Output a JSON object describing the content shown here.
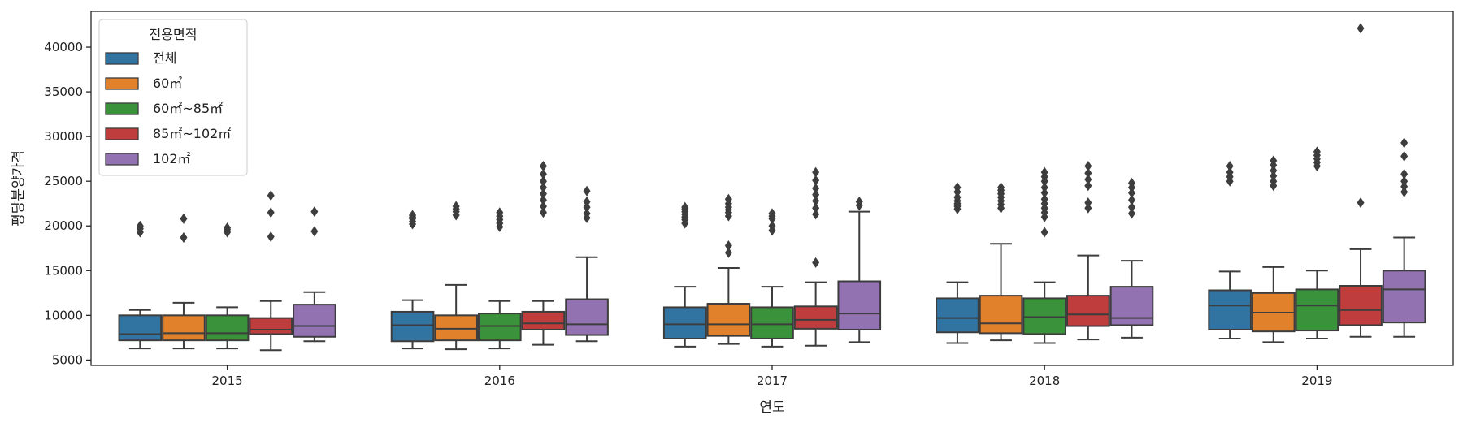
{
  "chart_data": {
    "type": "box",
    "xlabel": "연도",
    "ylabel": "평당분양가격",
    "categories": [
      "2015",
      "2016",
      "2017",
      "2018",
      "2019"
    ],
    "ylim": [
      4400,
      44000
    ],
    "yticks": [
      5000,
      10000,
      15000,
      20000,
      25000,
      30000,
      35000,
      40000
    ],
    "grid": false,
    "legend": {
      "title": "전용면적",
      "placement": "top-left"
    },
    "series": [
      {
        "name": "전체",
        "color": "#3274a1",
        "boxes": [
          {
            "whislo": 6300,
            "q1": 7200,
            "med": 7900,
            "q3": 10000,
            "whishi": 10600,
            "fliers": [
              19300,
              19700,
              20000
            ]
          },
          {
            "whislo": 6300,
            "q1": 7100,
            "med": 8900,
            "q3": 10400,
            "whishi": 11700,
            "fliers": [
              20200,
              20500,
              20800,
              21000,
              21200
            ]
          },
          {
            "whislo": 6500,
            "q1": 7400,
            "med": 9000,
            "q3": 10900,
            "whishi": 13200,
            "fliers": [
              20300,
              20700,
              21000,
              21300,
              21600,
              21900,
              22100
            ]
          },
          {
            "whislo": 6900,
            "q1": 8100,
            "med": 9700,
            "q3": 11900,
            "whishi": 13700,
            "fliers": [
              21900,
              22200,
              22500,
              22800,
              23200,
              23800,
              24300
            ]
          },
          {
            "whislo": 7400,
            "q1": 8400,
            "med": 11100,
            "q3": 12800,
            "whishi": 14900,
            "fliers": [
              25000,
              25500,
              26000,
              26700
            ]
          }
        ]
      },
      {
        "name": "60㎡",
        "color": "#e1812c",
        "boxes": [
          {
            "whislo": 6300,
            "q1": 7200,
            "med": 8000,
            "q3": 10000,
            "whishi": 11400,
            "fliers": [
              18700,
              20800
            ]
          },
          {
            "whislo": 6200,
            "q1": 7200,
            "med": 8500,
            "q3": 10000,
            "whishi": 13400,
            "fliers": [
              21200,
              21600,
              21900,
              22200
            ]
          },
          {
            "whislo": 6800,
            "q1": 7700,
            "med": 9000,
            "q3": 11300,
            "whishi": 15300,
            "fliers": [
              17000,
              17800,
              21100,
              21500,
              21800,
              22100,
              22500,
              23000
            ]
          },
          {
            "whislo": 7200,
            "q1": 8000,
            "med": 9100,
            "q3": 12200,
            "whishi": 18000,
            "fliers": [
              22000,
              22400,
              22800,
              23200,
              23600,
              24000,
              24300
            ]
          },
          {
            "whislo": 7000,
            "q1": 8200,
            "med": 10300,
            "q3": 12500,
            "whishi": 15400,
            "fliers": [
              24500,
              25000,
              25600,
              26200,
              26800,
              27300
            ]
          }
        ]
      },
      {
        "name": "60㎡~85㎡",
        "color": "#3a923a",
        "boxes": [
          {
            "whislo": 6300,
            "q1": 7200,
            "med": 8000,
            "q3": 10000,
            "whishi": 10900,
            "fliers": [
              19300,
              19600,
              19800
            ]
          },
          {
            "whislo": 6300,
            "q1": 7200,
            "med": 8800,
            "q3": 10200,
            "whishi": 11600,
            "fliers": [
              19900,
              20300,
              20700,
              21100,
              21500
            ]
          },
          {
            "whislo": 6500,
            "q1": 7400,
            "med": 9000,
            "q3": 10900,
            "whishi": 13200,
            "fliers": [
              19500,
              20000,
              20800,
              21100,
              21400
            ]
          },
          {
            "whislo": 6900,
            "q1": 7900,
            "med": 9800,
            "q3": 11900,
            "whishi": 13700,
            "fliers": [
              19300,
              21000,
              21500,
              22000,
              22500,
              23000,
              23700,
              24300,
              25000,
              25500,
              26000
            ]
          },
          {
            "whislo": 7400,
            "q1": 8300,
            "med": 11100,
            "q3": 12900,
            "whishi": 15000,
            "fliers": [
              26700,
              27100,
              27500,
              27900,
              28300
            ]
          }
        ]
      },
      {
        "name": "85㎡~102㎡",
        "color": "#c03d3e",
        "boxes": [
          {
            "whislo": 6100,
            "q1": 7900,
            "med": 8400,
            "q3": 9700,
            "whishi": 11600,
            "fliers": [
              18800,
              21500,
              23400
            ]
          },
          {
            "whislo": 6700,
            "q1": 8400,
            "med": 9100,
            "q3": 10400,
            "whishi": 11600,
            "fliers": [
              21500,
              22200,
              22900,
              23600,
              24300,
              25000,
              25800,
              26700
            ]
          },
          {
            "whislo": 6600,
            "q1": 8500,
            "med": 9500,
            "q3": 11000,
            "whishi": 13700,
            "fliers": [
              15900,
              21300,
              22000,
              22800,
              23500,
              24200,
              25100,
              26000
            ]
          },
          {
            "whislo": 7300,
            "q1": 8800,
            "med": 10100,
            "q3": 12200,
            "whishi": 16700,
            "fliers": [
              22000,
              22600,
              24500,
              25200,
              25900,
              26700
            ]
          },
          {
            "whislo": 7600,
            "q1": 8900,
            "med": 10600,
            "q3": 13300,
            "whishi": 17400,
            "fliers": [
              22600,
              42100
            ]
          }
        ]
      },
      {
        "name": "102㎡",
        "color": "#9372b2",
        "boxes": [
          {
            "whislo": 7100,
            "q1": 7600,
            "med": 8800,
            "q3": 11200,
            "whishi": 12600,
            "fliers": [
              19400,
              21600
            ]
          },
          {
            "whislo": 7100,
            "q1": 7800,
            "med": 9000,
            "q3": 11800,
            "whishi": 16500,
            "fliers": [
              20900,
              21400,
              22100,
              22700,
              23900
            ]
          },
          {
            "whislo": 7000,
            "q1": 8400,
            "med": 10200,
            "q3": 13800,
            "whishi": 21600,
            "fliers": [
              22300,
              22700
            ]
          },
          {
            "whislo": 7500,
            "q1": 8900,
            "med": 9700,
            "q3": 13200,
            "whishi": 16100,
            "fliers": [
              21400,
              22100,
              22900,
              23700,
              24300,
              24800
            ]
          },
          {
            "whislo": 7600,
            "q1": 9200,
            "med": 12900,
            "q3": 15000,
            "whishi": 18700,
            "fliers": [
              23800,
              24400,
              25000,
              25800,
              27800,
              29300
            ]
          }
        ]
      }
    ]
  }
}
